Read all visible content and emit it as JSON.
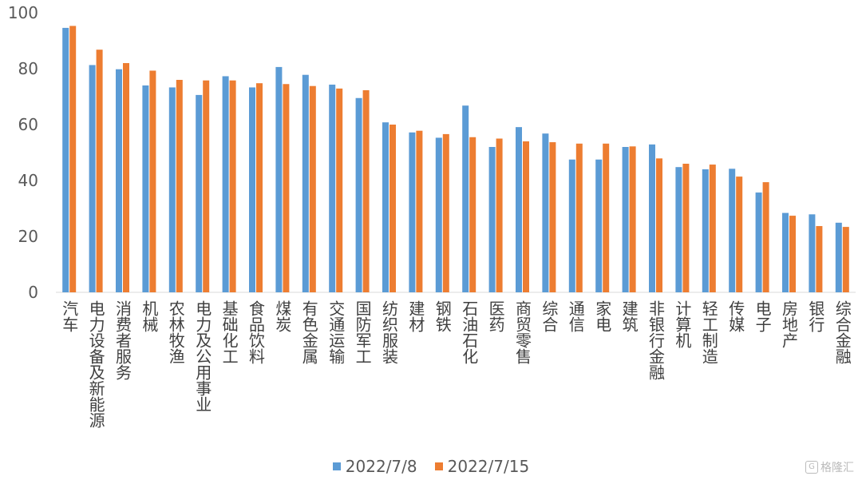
{
  "chart_data": {
    "type": "bar",
    "title": "",
    "xlabel": "",
    "ylabel": "",
    "ylim": [
      0,
      100
    ],
    "yticks": [
      0,
      20,
      40,
      60,
      80,
      100
    ],
    "grid": false,
    "legend_position": "bottom",
    "categories": [
      "汽车",
      "电力设备及新能源",
      "消费者服务",
      "机械",
      "农林牧渔",
      "电力及公用事业",
      "基础化工",
      "食品饮料",
      "煤炭",
      "有色金属",
      "交通运输",
      "国防军工",
      "纺织服装",
      "建材",
      "钢铁",
      "石油石化",
      "医药",
      "商贸零售",
      "综合",
      "通信",
      "家电",
      "建筑",
      "非银行金融",
      "计算机",
      "轻工制造",
      "传媒",
      "电子",
      "房地产",
      "银行",
      "综合金融"
    ],
    "series": [
      {
        "name": "2022/7/8",
        "color": "#5B9BD5",
        "values": [
          94.6,
          81.3,
          79.8,
          74.0,
          73.3,
          70.6,
          77.3,
          73.3,
          80.6,
          77.8,
          74.3,
          69.5,
          60.8,
          57.2,
          55.3,
          66.8,
          52.0,
          59.1,
          56.8,
          47.5,
          47.5,
          52.0,
          52.9,
          44.8,
          44.0,
          44.2,
          35.7,
          28.4,
          27.9,
          24.9
        ]
      },
      {
        "name": "2022/7/15",
        "color": "#ED7D31",
        "values": [
          95.3,
          86.8,
          82.0,
          79.3,
          76.0,
          75.8,
          75.8,
          74.8,
          74.5,
          73.8,
          72.9,
          72.3,
          60.0,
          57.8,
          56.6,
          55.5,
          55.0,
          54.0,
          53.7,
          53.2,
          53.2,
          52.2,
          47.9,
          46.0,
          45.7,
          41.4,
          39.4,
          27.4,
          23.7,
          23.4
        ]
      }
    ]
  },
  "watermark": {
    "text": "格隆汇",
    "logo_letter": "G"
  }
}
